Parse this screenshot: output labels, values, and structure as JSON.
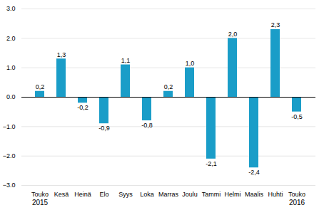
{
  "chart_data": {
    "type": "bar",
    "categories": [
      "Touko",
      "Kesä",
      "Heinä",
      "Elo",
      "Syys",
      "Loka",
      "Marras",
      "Joulu",
      "Tammi",
      "Helmi",
      "Maalis",
      "Huhti",
      "Touko"
    ],
    "values": [
      0.2,
      1.3,
      -0.2,
      -0.9,
      1.1,
      -0.8,
      0.2,
      1.0,
      -2.1,
      2.0,
      -2.4,
      2.3,
      -0.5
    ],
    "value_labels": [
      "0,2",
      "1,3",
      "-0,2",
      "-0,9",
      "1,1",
      "-0,8",
      "0,2",
      "1,0",
      "-2,1",
      "2,0",
      "-2,4",
      "2,3",
      "-0,5"
    ],
    "data_labels": true,
    "color": "#1a9dc8",
    "ylim": [
      -3,
      3
    ],
    "yticks": [
      -3,
      -2,
      -1,
      0,
      1,
      2,
      3
    ],
    "grid": true,
    "annotations": [
      {
        "text": "2015",
        "x": 0
      },
      {
        "text": "2016",
        "x": 12
      }
    ]
  }
}
